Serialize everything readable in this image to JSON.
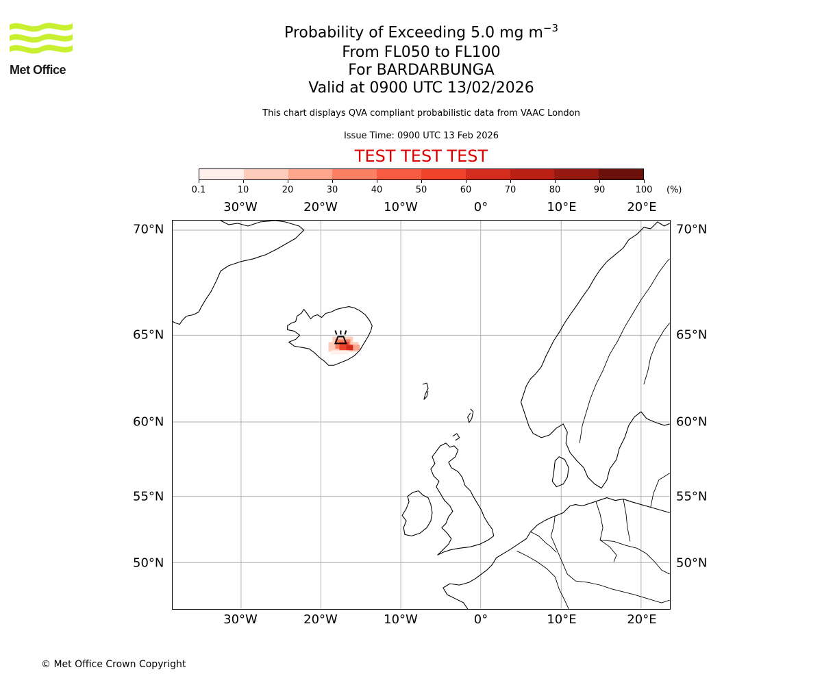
{
  "header": {
    "logo_text": "Met Office",
    "title_prefix": "Probability of Exceeding 5.0 mg m",
    "title_exponent": "−3",
    "line2": "From FL050 to FL100",
    "line3": "For BARDARBUNGA",
    "line4": "Valid at 0900 UTC 13/02/2026",
    "info": "This chart displays QVA compliant probabilistic data from VAAC London",
    "issue_time": "Issue Time: 0900 UTC 13 Feb 2026",
    "test_banner": "TEST TEST TEST"
  },
  "colorbar": {
    "ticks": [
      "0.1",
      "10",
      "20",
      "30",
      "40",
      "50",
      "60",
      "70",
      "80",
      "90",
      "100"
    ],
    "unit": "(%)",
    "colors": [
      "#fff0ec",
      "#fdccbb",
      "#fca68e",
      "#fb7f62",
      "#f75b41",
      "#f0432c",
      "#d42d20",
      "#bb2015",
      "#951910",
      "#6b0f0a"
    ]
  },
  "map": {
    "lon_labels": [
      "30°W",
      "20°W",
      "10°W",
      "0°",
      "10°E",
      "20°E"
    ],
    "lat_labels": [
      "70°N",
      "65°N",
      "60°N",
      "55°N",
      "50°N"
    ],
    "volcano": "BARDARBUNGA",
    "land_outline_color": "#000000",
    "grid_color": "#b0b0b0"
  },
  "footer": {
    "copyright": "© Met Office Crown Copyright"
  }
}
